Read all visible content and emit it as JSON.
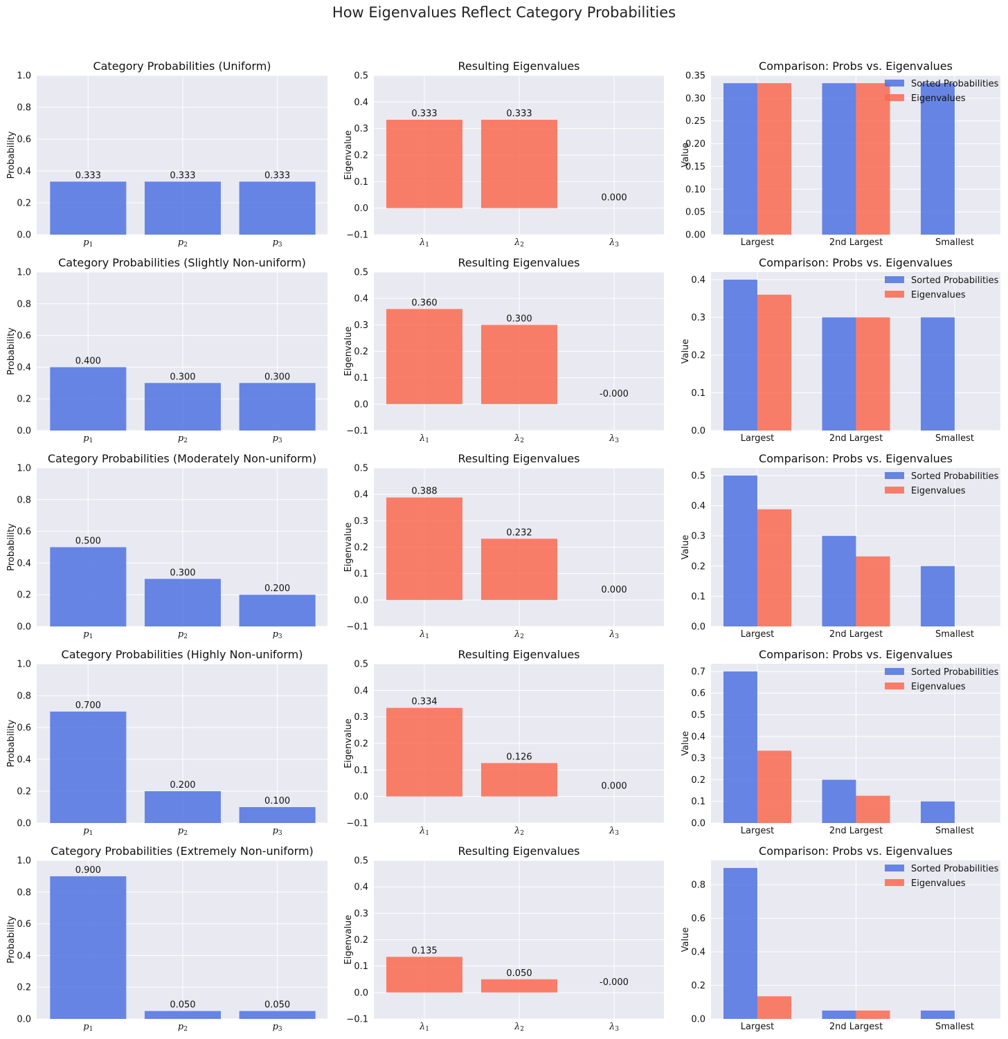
{
  "title": "How Eigenvalues Reflect Category Probabilities",
  "colors": {
    "prob": "#4f72e0",
    "eig": "#fa6a50",
    "panel_bg": "#e9e9f1",
    "grid": "#ffffff"
  },
  "chart_data": [
    {
      "row_label": "Uniform",
      "probabilities": {
        "type": "bar",
        "title": "Category Probabilities (Uniform)",
        "ylabel": "Probability",
        "categories": [
          "p1",
          "p2",
          "p3"
        ],
        "values": [
          0.333,
          0.333,
          0.333
        ],
        "labels": [
          "0.333",
          "0.333",
          "0.333"
        ],
        "ylim": [
          0,
          1.0
        ],
        "yticks": [
          "0.0",
          "0.2",
          "0.4",
          "0.6",
          "0.8",
          "1.0"
        ]
      },
      "eigenvalues": {
        "type": "bar",
        "title": "Resulting Eigenvalues",
        "ylabel": "Eigenvalue",
        "categories": [
          "λ1",
          "λ2",
          "λ3"
        ],
        "values": [
          0.333,
          0.333,
          0.0
        ],
        "labels": [
          "0.333",
          "0.333",
          "0.000"
        ],
        "ylim": [
          -0.1,
          0.5
        ],
        "yticks": [
          "−0.1",
          "0.0",
          "0.1",
          "0.2",
          "0.3",
          "0.4",
          "0.5"
        ]
      },
      "comparison": {
        "type": "bar",
        "title": "Comparison: Probs vs. Eigenvalues",
        "ylabel": "Value",
        "categories": [
          "Largest",
          "2nd Largest",
          "Smallest"
        ],
        "series": [
          {
            "name": "Sorted Probabilities",
            "values": [
              0.333,
              0.333,
              0.333
            ]
          },
          {
            "name": "Eigenvalues",
            "values": [
              0.333,
              0.333,
              0.0
            ]
          }
        ],
        "ylim": [
          0,
          0.35
        ],
        "yticks": [
          "0.00",
          "0.05",
          "0.10",
          "0.15",
          "0.20",
          "0.25",
          "0.30",
          "0.35"
        ]
      }
    },
    {
      "row_label": "Slightly Non-uniform",
      "probabilities": {
        "type": "bar",
        "title": "Category Probabilities (Slightly Non-uniform)",
        "ylabel": "Probability",
        "categories": [
          "p1",
          "p2",
          "p3"
        ],
        "values": [
          0.4,
          0.3,
          0.3
        ],
        "labels": [
          "0.400",
          "0.300",
          "0.300"
        ],
        "ylim": [
          0,
          1.0
        ],
        "yticks": [
          "0.0",
          "0.2",
          "0.4",
          "0.6",
          "0.8",
          "1.0"
        ]
      },
      "eigenvalues": {
        "type": "bar",
        "title": "Resulting Eigenvalues",
        "ylabel": "Eigenvalue",
        "categories": [
          "λ1",
          "λ2",
          "λ3"
        ],
        "values": [
          0.36,
          0.3,
          0.0
        ],
        "labels": [
          "0.360",
          "0.300",
          "-0.000"
        ],
        "ylim": [
          -0.1,
          0.5
        ],
        "yticks": [
          "−0.1",
          "0.0",
          "0.1",
          "0.2",
          "0.3",
          "0.4",
          "0.5"
        ]
      },
      "comparison": {
        "type": "bar",
        "title": "Comparison: Probs vs. Eigenvalues",
        "ylabel": "Value",
        "categories": [
          "Largest",
          "2nd Largest",
          "Smallest"
        ],
        "series": [
          {
            "name": "Sorted Probabilities",
            "values": [
              0.4,
              0.3,
              0.3
            ]
          },
          {
            "name": "Eigenvalues",
            "values": [
              0.36,
              0.3,
              0.0
            ]
          }
        ],
        "ylim": [
          0,
          0.42
        ],
        "yticks": [
          "0.0",
          "0.1",
          "0.2",
          "0.3",
          "0.4"
        ]
      }
    },
    {
      "row_label": "Moderately Non-uniform",
      "probabilities": {
        "type": "bar",
        "title": "Category Probabilities (Moderately Non-uniform)",
        "ylabel": "Probability",
        "categories": [
          "p1",
          "p2",
          "p3"
        ],
        "values": [
          0.5,
          0.3,
          0.2
        ],
        "labels": [
          "0.500",
          "0.300",
          "0.200"
        ],
        "ylim": [
          0,
          1.0
        ],
        "yticks": [
          "0.0",
          "0.2",
          "0.4",
          "0.6",
          "0.8",
          "1.0"
        ]
      },
      "eigenvalues": {
        "type": "bar",
        "title": "Resulting Eigenvalues",
        "ylabel": "Eigenvalue",
        "categories": [
          "λ1",
          "λ2",
          "λ3"
        ],
        "values": [
          0.388,
          0.232,
          0.0
        ],
        "labels": [
          "0.388",
          "0.232",
          "0.000"
        ],
        "ylim": [
          -0.1,
          0.5
        ],
        "yticks": [
          "−0.1",
          "0.0",
          "0.1",
          "0.2",
          "0.3",
          "0.4",
          "0.5"
        ]
      },
      "comparison": {
        "type": "bar",
        "title": "Comparison: Probs vs. Eigenvalues",
        "ylabel": "Value",
        "categories": [
          "Largest",
          "2nd Largest",
          "Smallest"
        ],
        "series": [
          {
            "name": "Sorted Probabilities",
            "values": [
              0.5,
              0.3,
              0.2
            ]
          },
          {
            "name": "Eigenvalues",
            "values": [
              0.388,
              0.232,
              0.0
            ]
          }
        ],
        "ylim": [
          0,
          0.525
        ],
        "yticks": [
          "0.0",
          "0.1",
          "0.2",
          "0.3",
          "0.4",
          "0.5"
        ]
      }
    },
    {
      "row_label": "Highly Non-uniform",
      "probabilities": {
        "type": "bar",
        "title": "Category Probabilities (Highly Non-uniform)",
        "ylabel": "Probability",
        "categories": [
          "p1",
          "p2",
          "p3"
        ],
        "values": [
          0.7,
          0.2,
          0.1
        ],
        "labels": [
          "0.700",
          "0.200",
          "0.100"
        ],
        "ylim": [
          0,
          1.0
        ],
        "yticks": [
          "0.0",
          "0.2",
          "0.4",
          "0.6",
          "0.8",
          "1.0"
        ]
      },
      "eigenvalues": {
        "type": "bar",
        "title": "Resulting Eigenvalues",
        "ylabel": "Eigenvalue",
        "categories": [
          "λ1",
          "λ2",
          "λ3"
        ],
        "values": [
          0.334,
          0.126,
          0.0
        ],
        "labels": [
          "0.334",
          "0.126",
          "0.000"
        ],
        "ylim": [
          -0.1,
          0.5
        ],
        "yticks": [
          "−0.1",
          "0.0",
          "0.1",
          "0.2",
          "0.3",
          "0.4",
          "0.5"
        ]
      },
      "comparison": {
        "type": "bar",
        "title": "Comparison: Probs vs. Eigenvalues",
        "ylabel": "Value",
        "categories": [
          "Largest",
          "2nd Largest",
          "Smallest"
        ],
        "series": [
          {
            "name": "Sorted Probabilities",
            "values": [
              0.7,
              0.2,
              0.1
            ]
          },
          {
            "name": "Eigenvalues",
            "values": [
              0.334,
              0.126,
              0.0
            ]
          }
        ],
        "ylim": [
          0,
          0.735
        ],
        "yticks": [
          "0.0",
          "0.1",
          "0.2",
          "0.3",
          "0.4",
          "0.5",
          "0.6",
          "0.7"
        ]
      }
    },
    {
      "row_label": "Extremely Non-uniform",
      "probabilities": {
        "type": "bar",
        "title": "Category Probabilities (Extremely Non-uniform)",
        "ylabel": "Probability",
        "categories": [
          "p1",
          "p2",
          "p3"
        ],
        "values": [
          0.9,
          0.05,
          0.05
        ],
        "labels": [
          "0.900",
          "0.050",
          "0.050"
        ],
        "ylim": [
          0,
          1.0
        ],
        "yticks": [
          "0.0",
          "0.2",
          "0.4",
          "0.6",
          "0.8",
          "1.0"
        ]
      },
      "eigenvalues": {
        "type": "bar",
        "title": "Resulting Eigenvalues",
        "ylabel": "Eigenvalue",
        "categories": [
          "λ1",
          "λ2",
          "λ3"
        ],
        "values": [
          0.135,
          0.05,
          0.0
        ],
        "labels": [
          "0.135",
          "0.050",
          "-0.000"
        ],
        "ylim": [
          -0.1,
          0.5
        ],
        "yticks": [
          "−0.1",
          "0.0",
          "0.1",
          "0.2",
          "0.3",
          "0.4",
          "0.5"
        ]
      },
      "comparison": {
        "type": "bar",
        "title": "Comparison: Probs vs. Eigenvalues",
        "ylabel": "Value",
        "categories": [
          "Largest",
          "2nd Largest",
          "Smallest"
        ],
        "series": [
          {
            "name": "Sorted Probabilities",
            "values": [
              0.9,
              0.05,
              0.05
            ]
          },
          {
            "name": "Eigenvalues",
            "values": [
              0.135,
              0.05,
              0.0
            ]
          }
        ],
        "ylim": [
          0,
          0.945
        ],
        "yticks": [
          "0.0",
          "0.2",
          "0.4",
          "0.6",
          "0.8"
        ]
      }
    }
  ]
}
